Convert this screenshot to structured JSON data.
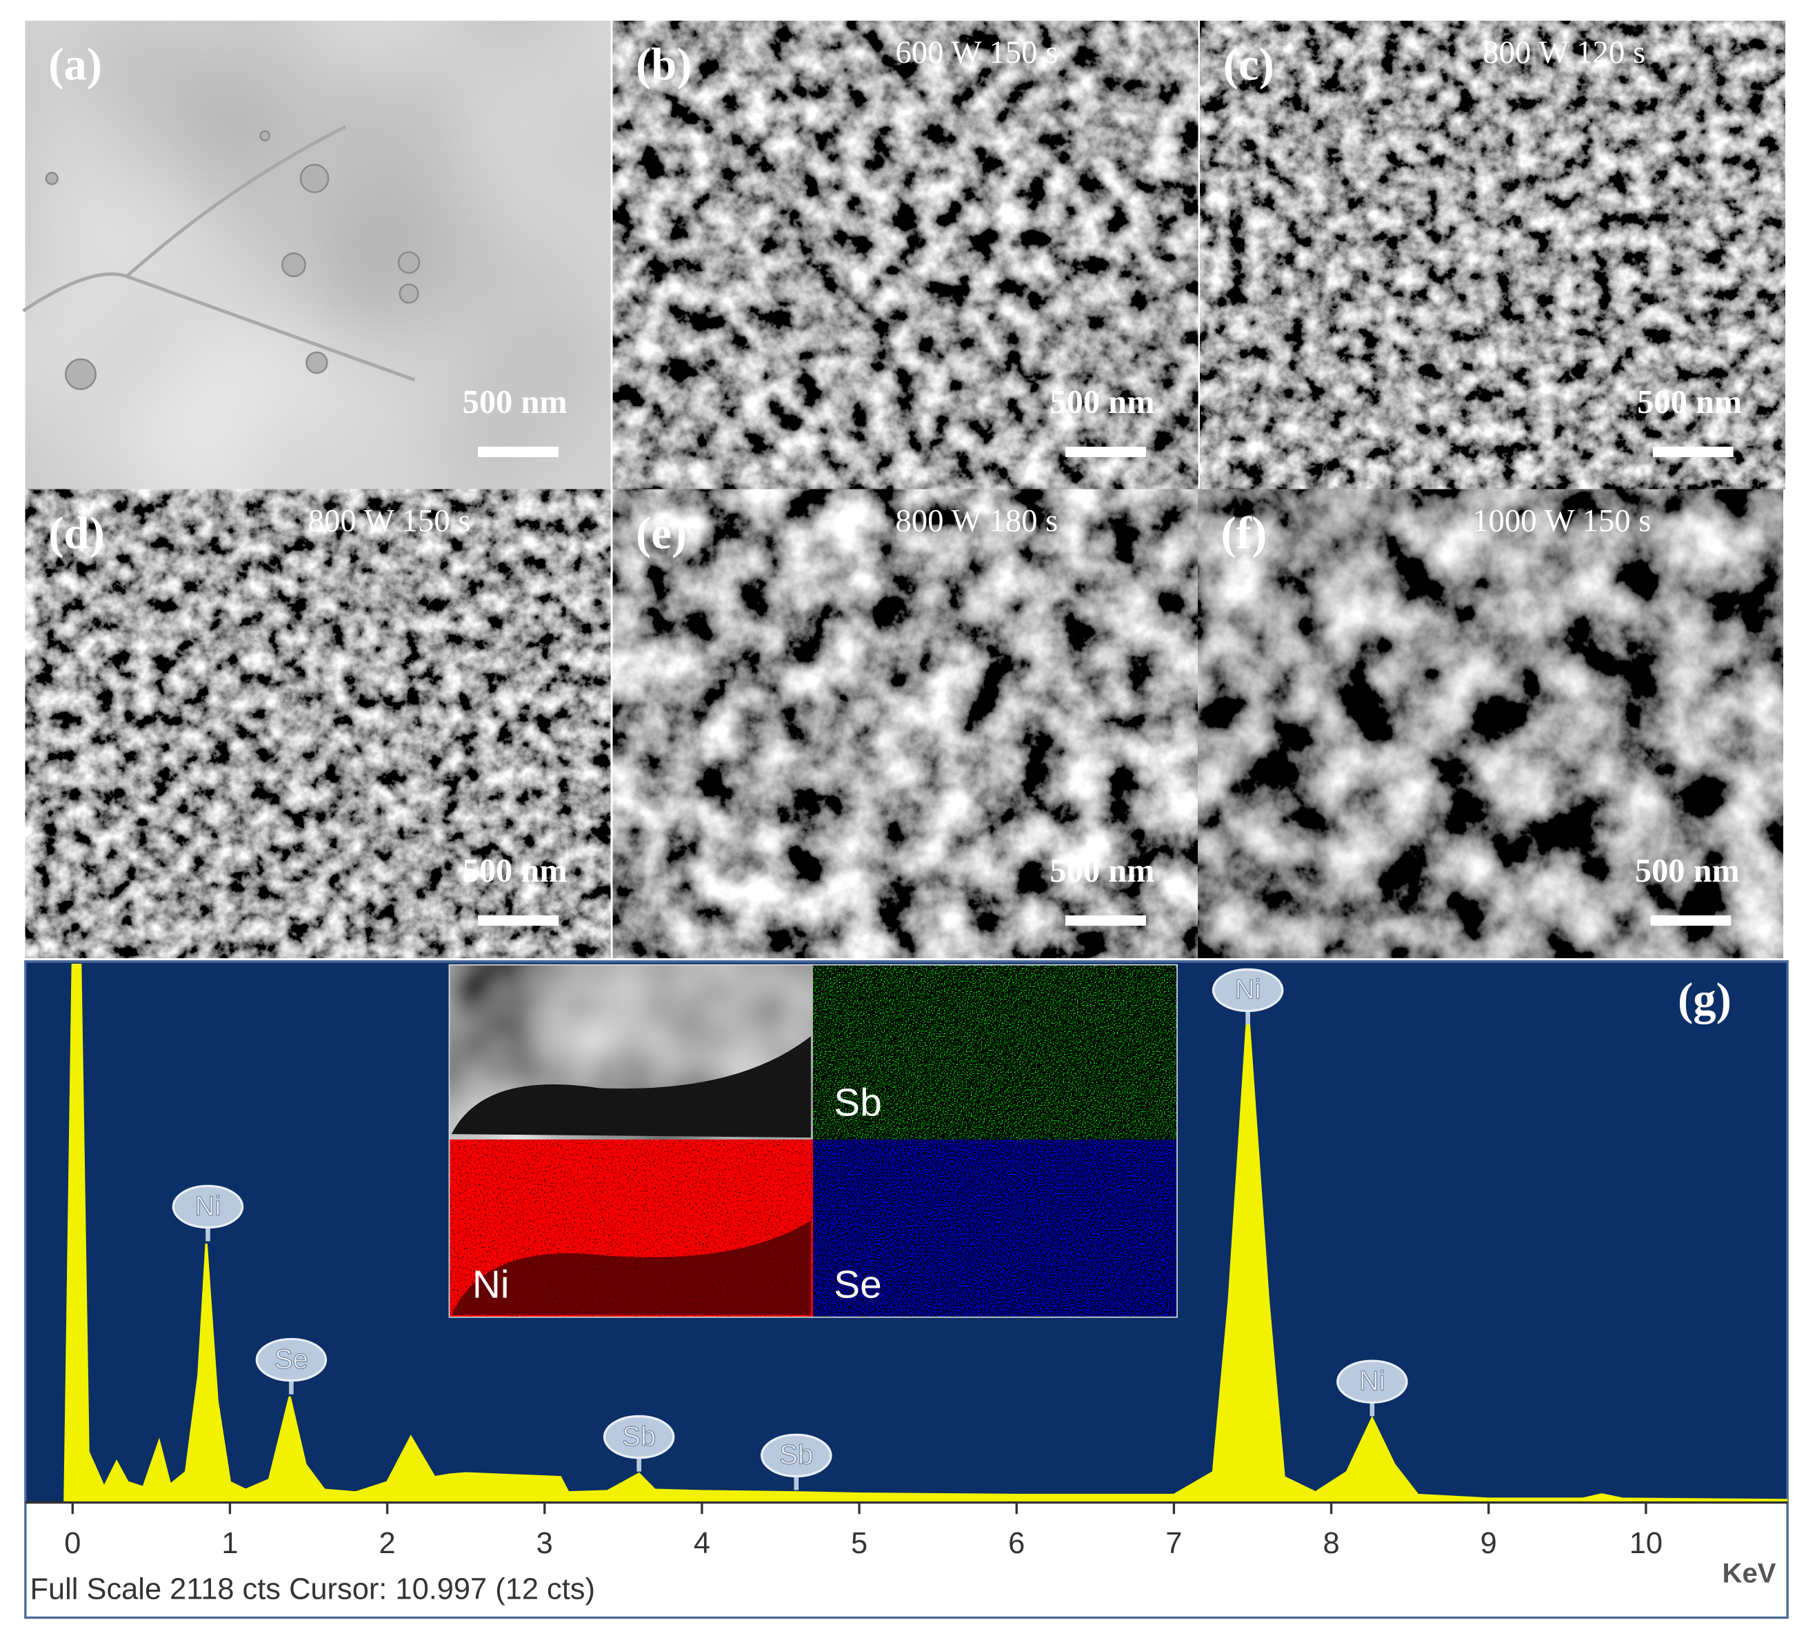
{
  "panels": [
    {
      "label": "(a)",
      "scale_bar": "500 nm"
    },
    {
      "label": "(b)",
      "condition": "600 W 150 s",
      "scale_bar": "500 nm"
    },
    {
      "label": "(c)",
      "condition": "800 W 120 s",
      "scale_bar": "500 nm"
    },
    {
      "label": "(d)",
      "condition": "800 W 150 s",
      "scale_bar": "500 nm"
    },
    {
      "label": "(e)",
      "condition": "800 W 180 s",
      "scale_bar": "500 nm"
    },
    {
      "label": "(f)",
      "condition": "1000 W 150 s",
      "scale_bar": "500 nm"
    }
  ],
  "chart_data": {
    "type": "spectrum",
    "panel_label": "(g)",
    "x": [
      -0.05,
      0.0,
      0.05,
      0.1,
      0.2,
      0.28,
      0.35,
      0.45,
      0.55,
      0.62,
      0.72,
      0.8,
      0.85,
      0.92,
      1.0,
      1.1,
      1.25,
      1.38,
      1.48,
      1.6,
      1.8,
      2.0,
      2.15,
      2.3,
      2.4,
      2.5,
      3.1,
      3.15,
      3.4,
      3.6,
      3.7,
      4.0,
      4.6,
      5.0,
      6.0,
      7.0,
      7.25,
      7.35,
      7.47,
      7.6,
      7.7,
      7.9,
      8.1,
      8.26,
      8.4,
      8.55,
      9.0,
      9.6,
      9.72,
      9.85,
      10.9
    ],
    "values": [
      0,
      2118,
      2118,
      200,
      60,
      160,
      80,
      60,
      240,
      70,
      120,
      500,
      1020,
      400,
      80,
      50,
      90,
      417,
      150,
      50,
      40,
      80,
      258,
      100,
      110,
      115,
      100,
      40,
      45,
      113,
      50,
      45,
      40,
      35,
      30,
      30,
      120,
      800,
      1950,
      800,
      100,
      40,
      120,
      331,
      150,
      30,
      15,
      15,
      32,
      15,
      10
    ],
    "color": "#f2f200",
    "background": "#0b2f66",
    "xlim": [
      -0.3,
      10.9
    ],
    "ylim": [
      0,
      2118
    ],
    "xticks": [
      0,
      1,
      2,
      3,
      4,
      5,
      6,
      7,
      8,
      9,
      10
    ],
    "x_unit": "KeV",
    "footer": "Full Scale 2118 cts Cursor: 10.997  (12 cts)",
    "peak_labels": [
      {
        "label": "Ni",
        "x": 0.86
      },
      {
        "label": "Se",
        "x": 1.39
      },
      {
        "label": "Sb",
        "x": 3.6
      },
      {
        "label": "Sb",
        "x": 4.6
      },
      {
        "label": "Ni",
        "x": 7.47
      },
      {
        "label": "Ni",
        "x": 8.26
      }
    ],
    "inset_labels": [
      "Sb",
      "Ni",
      "Se"
    ]
  }
}
